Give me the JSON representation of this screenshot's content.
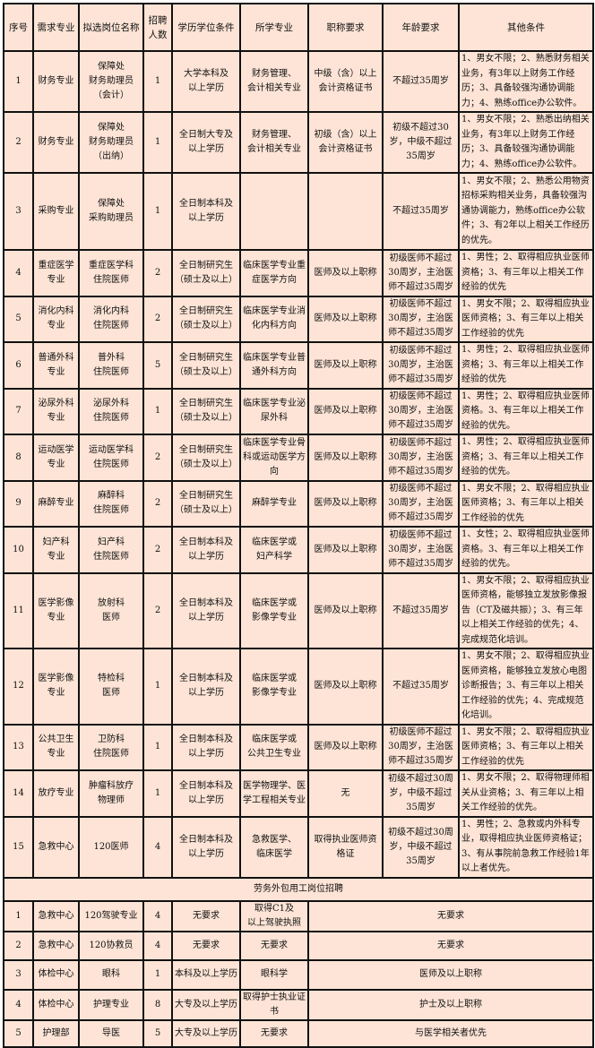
{
  "headers": [
    "序号",
    "需求专业",
    "拟选岗位名称",
    "招聘\n人数",
    "学历学位条件",
    "所学专业",
    "职称要求",
    "年龄要求",
    "其他条件"
  ],
  "rows": [
    [
      "1",
      "财务专业",
      "保障处\n财务助理员\n（会计）",
      "1",
      "大学本科及\n以上学历",
      "财务管理、\n会计相关专业",
      "中级（含）以上\n会计资格证书",
      "不超过35周岁",
      "1、男女不限；2、熟悉财务相关业务，有3年以上财务工作经历；3、具备较强沟通协调能力；4、熟练office办公软件。"
    ],
    [
      "2",
      "财务专业",
      "保障处\n财务助理员\n（出纳）",
      "1",
      "全日制大专及\n以上学历",
      "财务管理、\n会计相关专业",
      "初级（含）以上\n会计资格证书",
      "初级不超过30\n岁，中级不超过\n35周岁",
      "1、男女不限；2、熟悉出纳相关业务，有3年以上财务工作经历；3、具备较强沟通协调能力；4、熟练office办公软件。"
    ],
    [
      "3",
      "采购专业",
      "保障处\n采购助理员",
      "1",
      "全日制本科及\n以上学历",
      "",
      "",
      "不超过35周岁",
      "1、男女不限；2、熟悉公用物资招标采购相关业务，具备较强沟通协调能力，熟练office办公软件；3、有2年以上相关工作经历的优先。"
    ],
    [
      "4",
      "重症医学\n专业",
      "重症医学科\n住院医师",
      "2",
      "全日制研究生\n（硕士及以上）",
      "临床医学专业重症医学方向",
      "医师及以上职称",
      "初级医师不超过\n30周岁，主治医\n师不超过35周岁",
      "1、男性；2、取得相应执业医师资格；3、有三年以上相关工作经验的优先"
    ],
    [
      "5",
      "消化内科\n专业",
      "消化内科\n住院医师",
      "2",
      "全日制研究生\n（硕士及以上）",
      "临床医学专业消化内科方向",
      "医师及以上职称",
      "初级医师不超过\n30周岁，主治医\n师不超过35周岁",
      "1、男女不限；2、取得相应执业医师资格；3、有三年以上相关工作经验的优先"
    ],
    [
      "6",
      "普通外科\n专业",
      "普外科\n住院医师",
      "5",
      "全日制研究生\n（硕士及以上）",
      "临床医学专业普通外科方向",
      "医师及以上职称",
      "初级医师不超过\n30周岁，主治医\n师不超过35周岁",
      "1、男性；2、取得相应执业医师资格；3、有三年以上相关工作经验的优先"
    ],
    [
      "7",
      "泌尿外科\n专业",
      "泌尿外科\n住院医师",
      "1",
      "全日制研究生\n（硕士及以上）",
      "临床医学专业泌尿外科",
      "医师及以上职称",
      "初级医师不超过\n30周岁，主治医\n师不超过35周岁",
      "1、男性；2、取得相应执业医师资格。3、有三年以上相关工作经验的优先。"
    ],
    [
      "8",
      "运动医学\n专业",
      "运动医学科\n住院医师",
      "2",
      "全日制研究生\n（硕士及以上）",
      "临床医学专业骨科或运动医学方向",
      "医师及以上职称",
      "初级医师不超过\n30周岁，主治医\n师不超过35周岁",
      "1、男性；2、取得相应执业医师资格；3、有三年以上相关工作经验的优先。"
    ],
    [
      "9",
      "麻醉专业",
      "麻醉科\n住院医师",
      "2",
      "全日制研究生\n（硕士及以上）",
      "麻醉学专业",
      "医师及以上职称",
      "初级医师不超过\n30周岁，主治医\n师不超过35周岁",
      "1、男女不限；2、取得相应执业医师资格；3、有三年以上相关工作经验的优先"
    ],
    [
      "10",
      "妇产科\n专业",
      "妇产科\n住院医师",
      "2",
      "全日制本科及\n以上学历",
      "临床医学或\n妇产科学",
      "医师及以上职称",
      "初级医师不超过\n30周岁，主治医\n师不超过35周岁",
      "1、女性；2、取得相应执业医师资格。3、有三年以上相关工作经验的优先。"
    ],
    [
      "11",
      "医学影像\n专业",
      "放射科\n医师",
      "2",
      "全日制本科及\n以上学历",
      "临床医学或\n影像学专业",
      "医师及以上职称",
      "不超过35周岁",
      "1、男女不限；2、取得相应执业医师资格，能够独立发放影像报告（CT及磁共振）；3、有三年以上相关工作经验的优先；4、完成规范化培训。"
    ],
    [
      "12",
      "医学影像\n专业",
      "特检科\n医师",
      "1",
      "全日制本科及\n以上学历",
      "临床医学或\n影像学专业",
      "医师及以上职称",
      "不超过35周岁",
      "1、男女不限；2、取得相应执业医师资格，能够独立发放心电图诊断报告；3、有三年以上相关工作经验的优先；4、完成规范化培训。"
    ],
    [
      "13",
      "公共卫生\n专业",
      "卫防科\n住院医师",
      "1",
      "全日制本科及\n以上学历",
      "临床医学或\n公共卫生专业",
      "医师及以上职称",
      "初级医师不超过\n30周岁，主治医\n师不超过35周岁",
      "1、男女不限；2、取得相应执业医师资格；3、有三年以上相关工作经验的优先"
    ],
    [
      "14",
      "放疗专业",
      "肿瘤科放疗\n物理师",
      "1",
      "全日制本科及\n以上学历",
      "医学物理学、医学工程相关专业",
      "无",
      "初级不超过30周岁，中级不超过35周岁",
      "1、男女不限；2、取得物理师相关从业资格；3、有三年以上相关工作经验的优先。"
    ],
    [
      "15",
      "急救中心",
      "120医师",
      "4",
      "全日制本科及\n以上学历",
      "急救医学、\n临床医学",
      "取得执业医师资\n格证",
      "初级不超过30周岁，中级不超过35周岁",
      "1、男性；2、急救或内外科专业，取得相应执业医师资格证；3、有从事院前急救工作经验1年以上者优先。"
    ]
  ],
  "section_title": "劳务外包用工岗位招聘",
  "outsource_rows": [
    [
      "1",
      "急救中心",
      "120驾驶专业",
      "4",
      "无要求",
      "取得C1及\n以上驾驶执照",
      "无要求"
    ],
    [
      "2",
      "急救中心",
      "120协救员",
      "4",
      "无要求",
      "无要求",
      "无要求"
    ],
    [
      "3",
      "体检中心",
      "眼科",
      "1",
      "本科及以上学历",
      "眼科学",
      "医师及以上职称"
    ],
    [
      "4",
      "体检中心",
      "护理专业",
      "8",
      "大专及以上学历",
      "取得护士执业证书",
      "护士及以上职称"
    ],
    [
      "5",
      "护理部",
      "导医",
      "5",
      "大专及以上学历",
      "无要求",
      "与医学相关者优先"
    ]
  ],
  "colors": {
    "cell_background": "#fde4d6",
    "border": "#111111"
  }
}
